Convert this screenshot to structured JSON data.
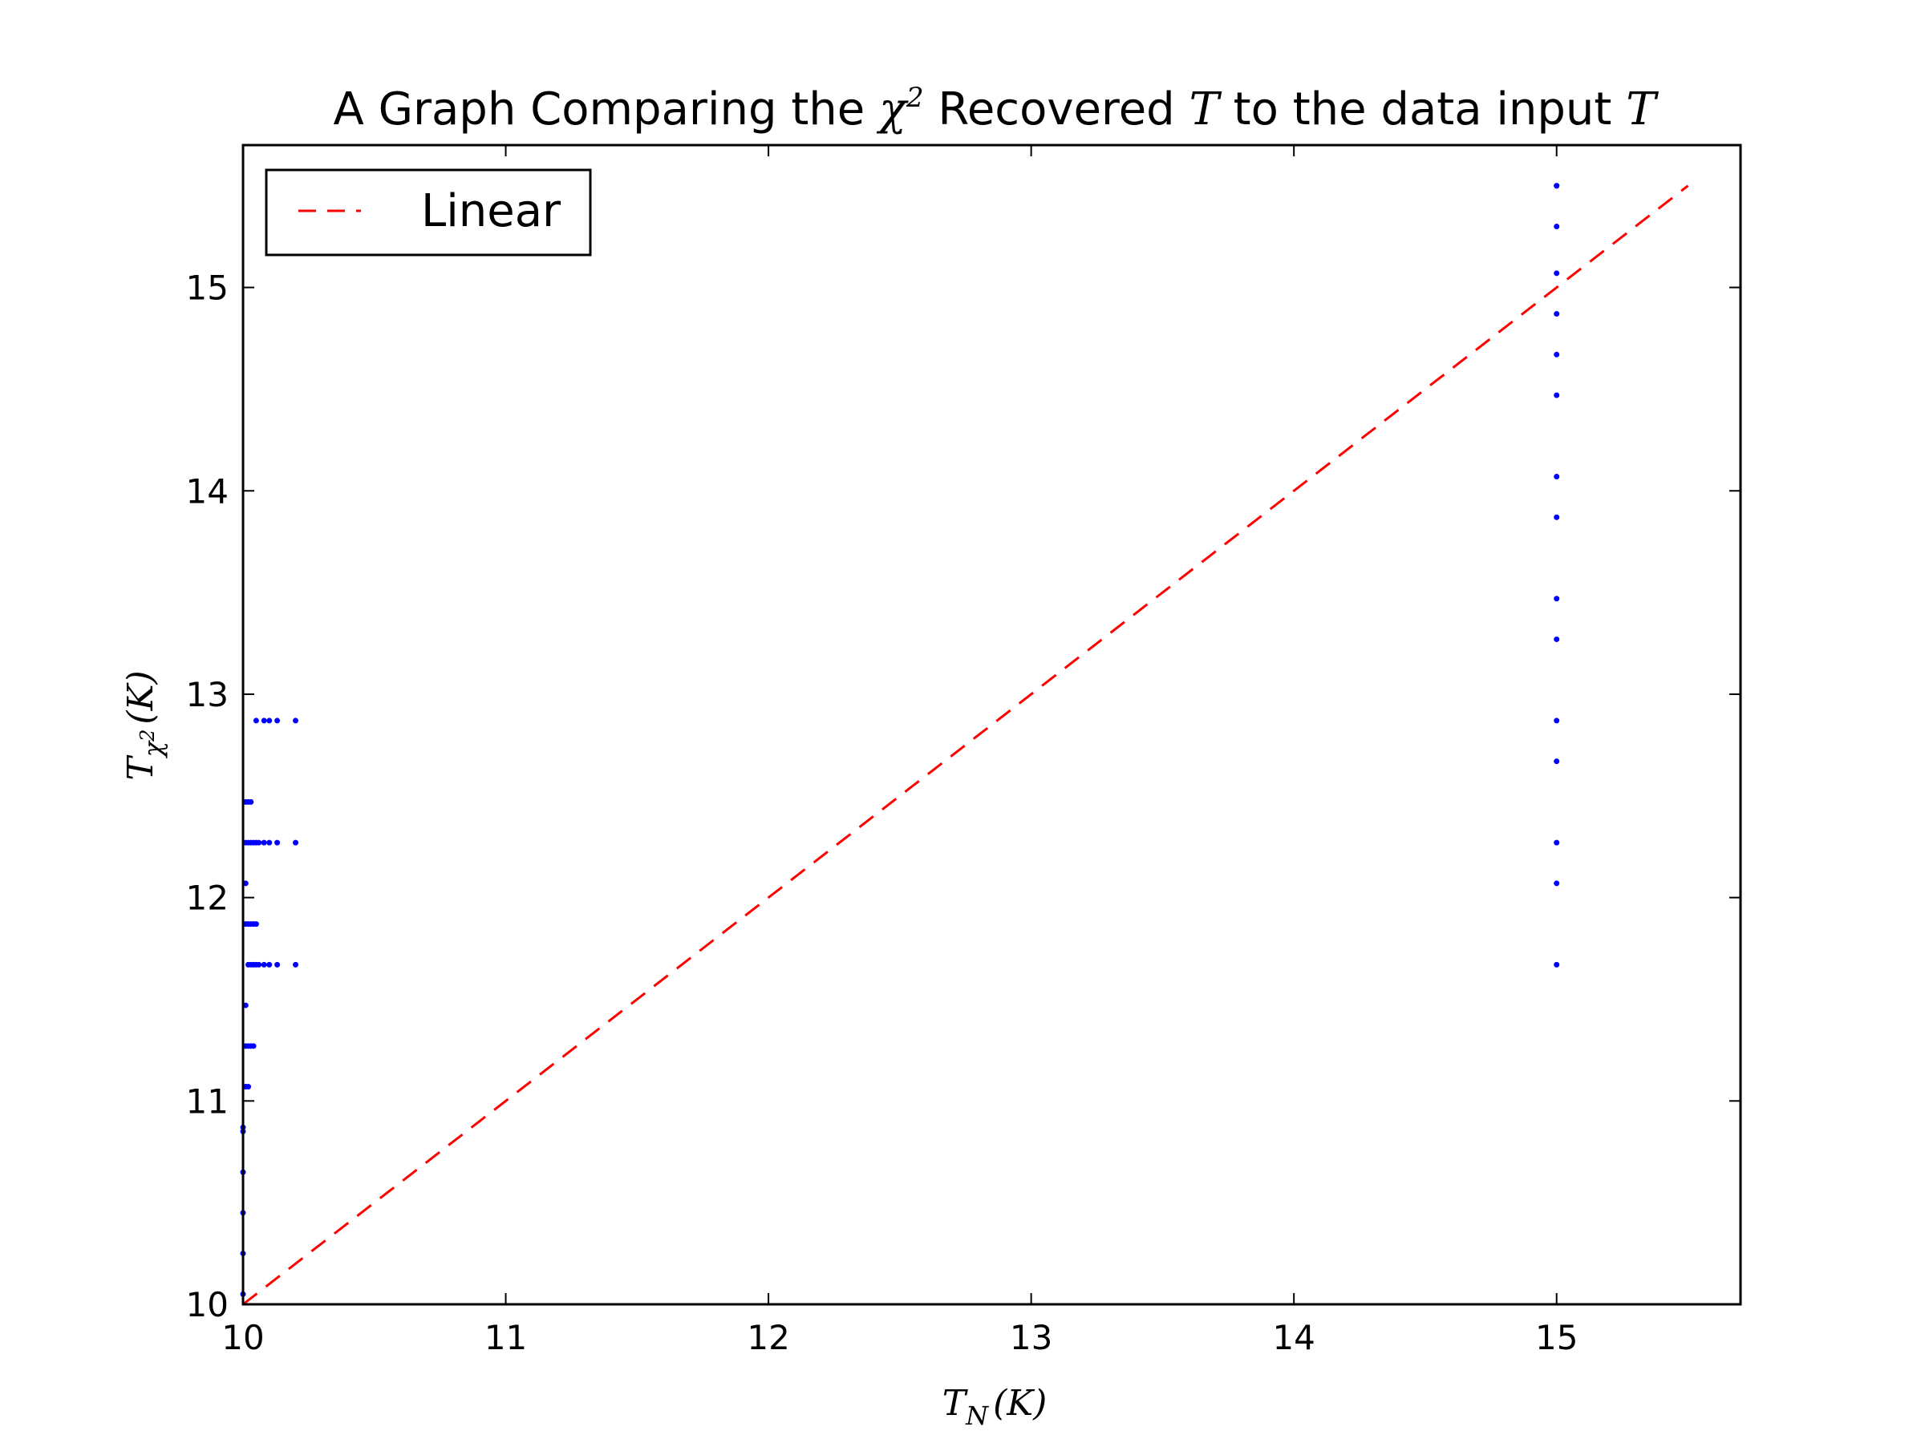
{
  "chart_data": {
    "type": "scatter",
    "title": {
      "parts": [
        {
          "text": "A Graph Comparing the ",
          "math": false
        },
        {
          "text": "χ",
          "math": true
        },
        {
          "text": "2",
          "math": true,
          "sup": true
        },
        {
          "text": " Recovered ",
          "math": false
        },
        {
          "text": "T",
          "math": true
        },
        {
          "text": " to the data input ",
          "math": false
        },
        {
          "text": "T",
          "math": true
        }
      ]
    },
    "xlabel": {
      "base": "T",
      "sub": "N",
      "tail": "(K)"
    },
    "ylabel": {
      "base": "T",
      "sub": "χ",
      "subsup": "2",
      "tail": "(K)"
    },
    "xlim": [
      10,
      15.7
    ],
    "ylim": [
      10,
      15.7
    ],
    "xticks": [
      10,
      11,
      12,
      13,
      14,
      15
    ],
    "yticks": [
      10,
      11,
      12,
      13,
      14,
      15
    ],
    "xtick_labels": [
      "10",
      "11",
      "12",
      "13",
      "14",
      "15"
    ],
    "ytick_labels": [
      "10",
      "11",
      "12",
      "13",
      "14",
      "15"
    ],
    "grid": false,
    "legend": {
      "placement": "top-left",
      "entries": [
        {
          "label": "Linear",
          "style": "dashed",
          "color": "#ff0000"
        }
      ]
    },
    "colors": {
      "points": "#0000ff",
      "line": "#ff0000"
    },
    "series": [
      {
        "kind": "points",
        "x": [
          10.0,
          10.0,
          10.0,
          10.0,
          10.0,
          10.0,
          10.01,
          10.01,
          10.02,
          10.01,
          10.02,
          10.03,
          10.04,
          10.01,
          10.02,
          10.03,
          10.04,
          10.05,
          10.06,
          10.08,
          10.1,
          10.13,
          10.2,
          10.01,
          10.02,
          10.03,
          10.04,
          10.05,
          10.01,
          10.01,
          10.02,
          10.03,
          10.04,
          10.05,
          10.06,
          10.08,
          10.1,
          10.13,
          10.2,
          10.01,
          10.02,
          10.03,
          10.05,
          10.08,
          10.1,
          10.13,
          10.2,
          15,
          15,
          15,
          15,
          15,
          15,
          15,
          15,
          15,
          15,
          15,
          15,
          15,
          15,
          15,
          15
        ],
        "y": [
          10.05,
          10.25,
          10.45,
          10.65,
          10.85,
          10.87,
          11.07,
          11.07,
          11.07,
          11.27,
          11.27,
          11.27,
          11.27,
          11.47,
          11.67,
          11.67,
          11.67,
          11.67,
          11.67,
          11.67,
          11.67,
          11.67,
          11.67,
          11.87,
          11.87,
          11.87,
          11.87,
          11.87,
          12.07,
          12.27,
          12.27,
          12.27,
          12.27,
          12.27,
          12.27,
          12.27,
          12.27,
          12.27,
          12.27,
          12.47,
          12.47,
          12.47,
          12.87,
          12.87,
          12.87,
          12.87,
          12.87,
          11.67,
          12.07,
          12.27,
          12.67,
          12.87,
          13.27,
          13.47,
          13.87,
          14.07,
          14.47,
          14.67,
          14.87,
          15.07,
          15.3,
          15.5,
          15.5
        ]
      },
      {
        "kind": "line",
        "name": "Linear",
        "x": [
          10,
          15.5
        ],
        "y": [
          10,
          15.5
        ]
      }
    ]
  }
}
